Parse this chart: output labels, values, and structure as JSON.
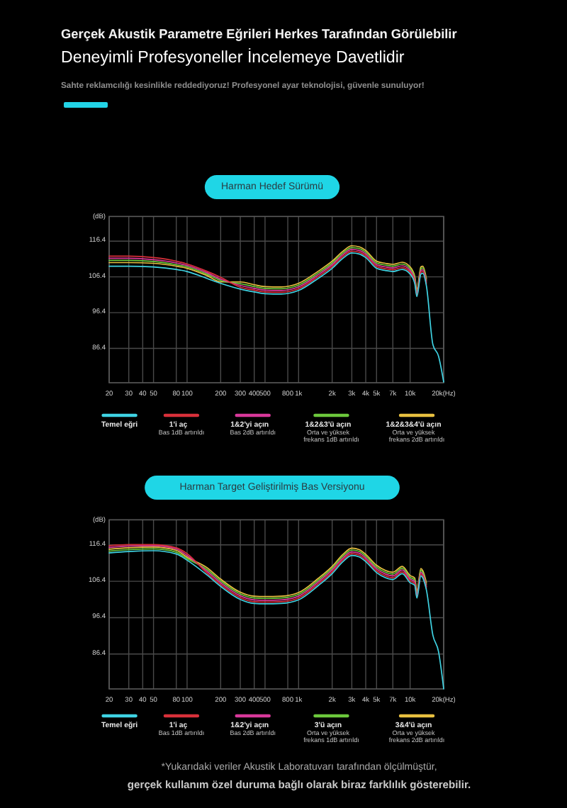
{
  "chart_data": [
    {
      "type": "line",
      "title": "Harman Hedef Sürümü",
      "ylabel": "(dB)",
      "annotations": [
        "Gerçek Akustik Parametre Eğrileri Herkes Tarafından Görülebilir",
        "Deneyimli Profesyoneller İncelemeye Davetlidir",
        "Sahte reklamcılığı kesinlikle reddediyoruz! Profesyonel ayar teknolojisi, güvenle sunuluyor!"
      ],
      "x": [
        20,
        30,
        50,
        80,
        100,
        150,
        200,
        300,
        400,
        500,
        700,
        1000,
        1500,
        2000,
        2500,
        3000,
        3500,
        4000,
        5000,
        6000,
        7000,
        8500,
        10000,
        11000,
        11500,
        12500,
        13000,
        14000,
        16000,
        18000,
        20000
      ],
      "series": [
        {
          "name": "Temel eğri",
          "color": "#3fd3e3",
          "values": [
            109.4,
            109.4,
            109.2,
            108.5,
            107.9,
            106.0,
            104.6,
            103.0,
            102.2,
            101.7,
            101.6,
            102.6,
            106.0,
            108.8,
            111.6,
            113.1,
            112.8,
            111.8,
            108.8,
            108.2,
            107.9,
            108.5,
            107.2,
            104.6,
            100.9,
            107.2,
            107.4,
            103.9,
            87.5,
            84.2,
            77.0
          ]
        },
        {
          "name": "1'i aç\nBas 1dB artırıldı",
          "color": "#d8303a",
          "values": [
            112.2,
            112.2,
            111.8,
            110.8,
            110.0,
            108.0,
            106.3,
            103.5,
            102.7,
            102.2,
            102.1,
            103.1,
            106.5,
            109.3,
            112.1,
            113.6,
            113.3,
            112.3,
            109.3,
            108.7,
            108.4,
            109.0,
            107.7,
            105.1,
            101.4,
            107.7,
            107.9,
            104.4,
            null,
            null,
            null
          ]
        },
        {
          "name": "1&2'yi açın\nBas 2dB artırıldı",
          "color": "#d8389a",
          "values": [
            111.6,
            111.6,
            111.2,
            110.3,
            109.6,
            107.6,
            105.8,
            104.0,
            103.2,
            102.7,
            102.6,
            103.6,
            107.0,
            109.8,
            112.6,
            114.1,
            113.8,
            112.8,
            109.8,
            109.2,
            108.9,
            109.5,
            108.2,
            105.6,
            101.9,
            108.2,
            108.4,
            104.9,
            null,
            null,
            null
          ]
        },
        {
          "name": "1&2&3'ü açın\nOrta ve yüksek frekans 1dB artırıldı",
          "color": "#6cc83c",
          "values": [
            111.0,
            111.0,
            110.7,
            109.8,
            109.2,
            107.2,
            105.4,
            104.5,
            103.7,
            103.2,
            103.1,
            104.1,
            107.5,
            110.3,
            113.1,
            114.6,
            114.3,
            113.3,
            110.3,
            109.7,
            109.4,
            110.0,
            108.7,
            106.1,
            102.4,
            108.7,
            108.9,
            105.4,
            null,
            null,
            null
          ]
        },
        {
          "name": "1&2&3&4'ü açın\nOrta ve yüksek frekans 2dB artırıldı",
          "color": "#e8c040",
          "values": [
            110.4,
            110.4,
            110.2,
            109.4,
            108.8,
            106.8,
            105.0,
            105.0,
            104.2,
            103.7,
            103.6,
            104.6,
            108.0,
            110.8,
            113.6,
            115.1,
            114.8,
            113.8,
            110.8,
            110.2,
            109.9,
            110.5,
            109.2,
            106.6,
            102.9,
            109.2,
            109.4,
            105.9,
            null,
            null,
            null
          ]
        }
      ],
      "xlim": [
        20,
        20000
      ],
      "ylim": [
        76.8,
        123.3
      ],
      "xticks": [
        20,
        30,
        40,
        50,
        80,
        100,
        200,
        300,
        400,
        500,
        800,
        {
          "value": 1000,
          "label": "1k"
        },
        {
          "value": 2000,
          "label": "2k"
        },
        {
          "value": 3000,
          "label": "3k"
        },
        {
          "value": 4000,
          "label": "4k"
        },
        {
          "value": 5000,
          "label": "5k"
        },
        {
          "value": 7000,
          "label": "7k"
        },
        {
          "value": 10000,
          "label": "10k"
        },
        {
          "value": 20000,
          "label": "20k(Hz)"
        }
      ],
      "yticks": [
        86.4,
        96.4,
        106.4,
        116.4
      ],
      "log": "x",
      "grid": true,
      "legend": "bottom"
    },
    {
      "type": "line",
      "title": "Harman Target Geliştirilmiş Bas Versiyonu",
      "ylabel": "(dB)",
      "annotations": [
        "*Yukarıdaki veriler Akustik Laboratuvarı tarafından ölçülmüştür,",
        "gerçek kullanım özel duruma bağlı olarak biraz farklılık gösterebilir."
      ],
      "x": [
        20,
        30,
        50,
        80,
        100,
        150,
        200,
        300,
        400,
        500,
        700,
        1000,
        1500,
        2000,
        2500,
        3000,
        3500,
        4000,
        5000,
        6000,
        7000,
        8500,
        10000,
        11000,
        11500,
        12500,
        13000,
        14000,
        16000,
        18000,
        20000
      ],
      "series": [
        {
          "name": "Temel eğri",
          "color": "#3fd3e3",
          "values": [
            114.2,
            114.6,
            114.8,
            113.9,
            112.2,
            108.2,
            105.0,
            101.4,
            100.3,
            100.2,
            100.3,
            101.3,
            105.2,
            108.5,
            111.8,
            113.5,
            113.1,
            111.8,
            108.8,
            107.4,
            106.9,
            108.5,
            106.0,
            105.3,
            101.8,
            107.9,
            107.3,
            104.0,
            91.6,
            87.0,
            76.8
          ]
        },
        {
          "name": "1'i aç\nBas 1dB artırıldı",
          "color": "#d8303a",
          "values": [
            116.2,
            116.5,
            116.5,
            115.6,
            114.0,
            108.7,
            105.5,
            101.9,
            100.8,
            100.7,
            100.8,
            101.8,
            105.7,
            109.0,
            112.3,
            114.0,
            113.6,
            112.3,
            109.3,
            107.9,
            107.4,
            109.0,
            106.5,
            105.8,
            102.3,
            108.4,
            107.8,
            104.5,
            null,
            null,
            null
          ]
        },
        {
          "name": "1&2'yi açın\nBas 2dB artırıldı",
          "color": "#d8389a",
          "values": [
            115.7,
            116.1,
            116.2,
            115.3,
            113.5,
            109.2,
            106.0,
            102.4,
            101.3,
            101.2,
            101.3,
            102.3,
            106.2,
            109.5,
            112.8,
            114.5,
            114.1,
            112.8,
            109.8,
            108.4,
            107.9,
            109.5,
            107.0,
            106.3,
            102.8,
            108.9,
            108.3,
            105.0,
            null,
            null,
            null
          ]
        },
        {
          "name": "3'ü açın\nOrta ve yüksek frekans 1dB artırıldı",
          "color": "#6cc83c",
          "values": [
            114.7,
            115.1,
            115.3,
            114.4,
            112.6,
            109.7,
            106.5,
            102.9,
            101.8,
            101.7,
            101.8,
            102.8,
            106.7,
            110.0,
            113.3,
            115.0,
            114.6,
            113.3,
            110.3,
            108.9,
            108.4,
            110.0,
            107.5,
            106.8,
            103.3,
            109.4,
            108.8,
            105.5,
            null,
            null,
            null
          ]
        },
        {
          "name": "3&4'ü açın\nOrta ve yüksek frekans 2dB artırıldı",
          "color": "#e8c040",
          "values": [
            115.2,
            115.6,
            115.8,
            114.9,
            113.0,
            110.2,
            107.0,
            103.4,
            102.3,
            102.2,
            102.3,
            103.3,
            107.2,
            110.5,
            113.8,
            115.5,
            115.1,
            113.8,
            110.8,
            109.4,
            108.9,
            110.5,
            108.0,
            107.3,
            103.8,
            109.9,
            109.3,
            106.0,
            null,
            null,
            null
          ]
        }
      ],
      "xlim": [
        20,
        20000
      ],
      "ylim": [
        76.8,
        123.3
      ],
      "xticks": [
        20,
        30,
        40,
        50,
        80,
        100,
        200,
        300,
        400,
        500,
        800,
        {
          "value": 1000,
          "label": "1k"
        },
        {
          "value": 2000,
          "label": "2k"
        },
        {
          "value": 3000,
          "label": "3k"
        },
        {
          "value": 4000,
          "label": "4k"
        },
        {
          "value": 5000,
          "label": "5k"
        },
        {
          "value": 7000,
          "label": "7k"
        },
        {
          "value": 10000,
          "label": "10k"
        },
        {
          "value": 20000,
          "label": "20k(Hz)"
        }
      ],
      "yticks": [
        86.4,
        96.4,
        106.4,
        116.4
      ],
      "log": "x",
      "grid": true,
      "legend": "bottom"
    }
  ]
}
